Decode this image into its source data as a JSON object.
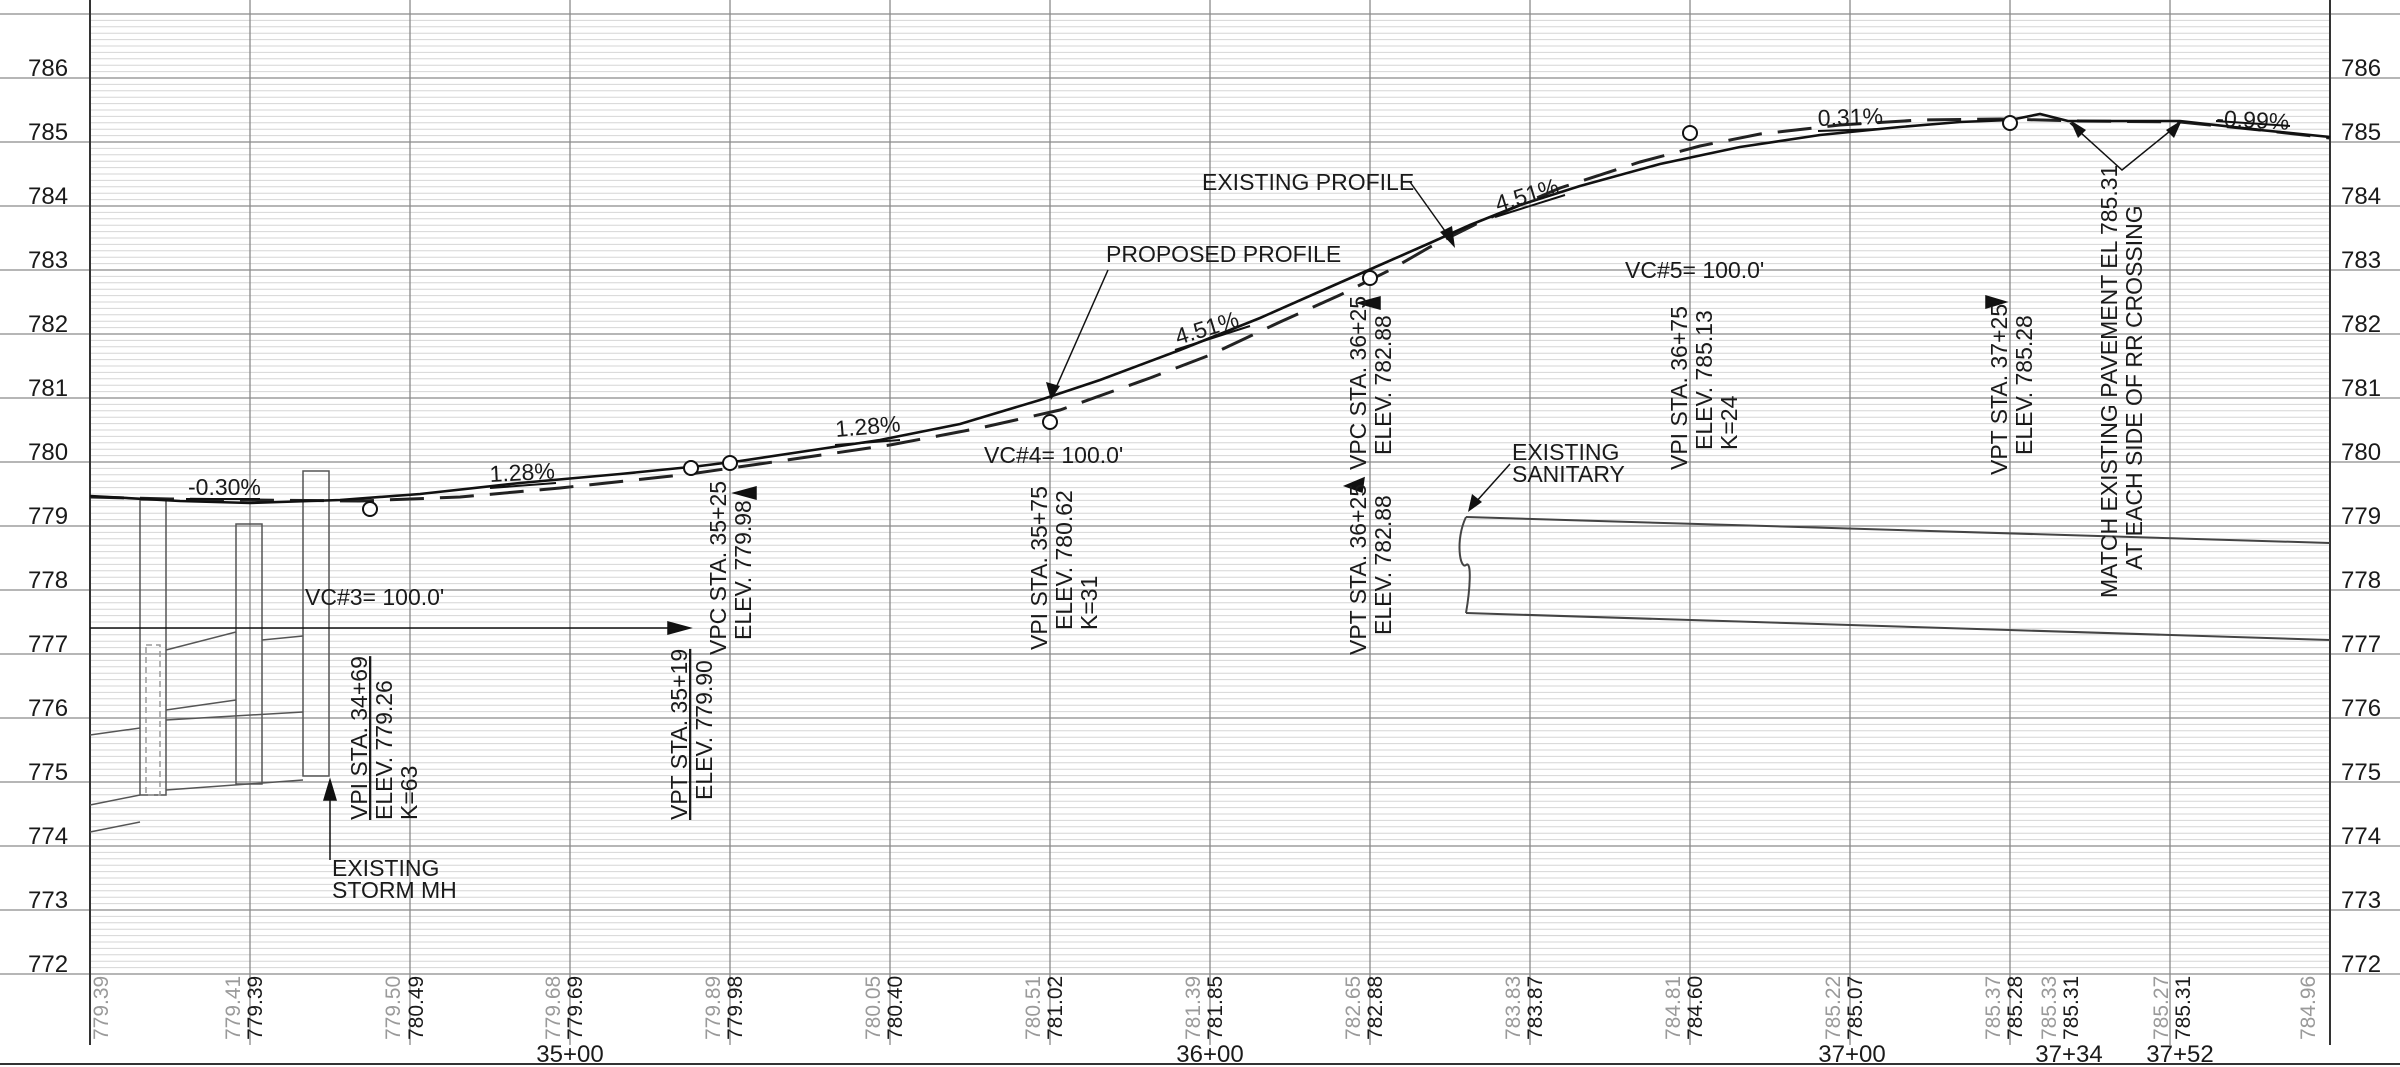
{
  "elevation_labels": [
    "786",
    "785",
    "784",
    "783",
    "782",
    "781",
    "780",
    "779",
    "778",
    "777",
    "776",
    "775",
    "774",
    "773",
    "772"
  ],
  "station_labels": [
    "35+00",
    "36+00",
    "37+00",
    "37+34",
    "37+52"
  ],
  "bottom_elevations": [
    {
      "existing": "779.39",
      "proposed": ""
    },
    {
      "existing": "779.41",
      "proposed": "779.39"
    },
    {
      "existing": "779.50",
      "proposed": "780.49"
    },
    {
      "existing": "779.68",
      "proposed": "779.69"
    },
    {
      "existing": "779.89",
      "proposed": "779.98"
    },
    {
      "existing": "780.05",
      "proposed": "780.40"
    },
    {
      "existing": "780.51",
      "proposed": "781.02"
    },
    {
      "existing": "781.39",
      "proposed": "781.85"
    },
    {
      "existing": "782.65",
      "proposed": "782.88"
    },
    {
      "existing": "783.83",
      "proposed": "783.87"
    },
    {
      "existing": "784.81",
      "proposed": "784.60"
    },
    {
      "existing": "785.22",
      "proposed": "785.07"
    },
    {
      "existing": "785.37",
      "proposed": "785.28"
    },
    {
      "existing": "785.33",
      "proposed": "785.31"
    },
    {
      "existing": "785.27",
      "proposed": "785.31"
    },
    {
      "existing": "784.96",
      "proposed": ""
    }
  ],
  "grades": {
    "g1": "-0.30%",
    "g2": "1.28%",
    "g3": "1.28%",
    "g4": "4.51%",
    "g5": "4.51%",
    "g6": "0.31%",
    "g7": "-0.99%"
  },
  "curves": {
    "vc3": "VC#3= 100.0'",
    "vc4": "VC#4= 100.0'",
    "vc5": "VC#5= 100.0'"
  },
  "points": {
    "vpi3": {
      "sta": "VPI STA. 34+69",
      "elev": "ELEV. 779.26",
      "k": "K=63"
    },
    "vpt3": {
      "sta": "VPT STA. 35+19",
      "elev": "ELEV. 779.90"
    },
    "vpc4": {
      "sta": "VPC STA. 35+25",
      "elev": "ELEV. 779.98"
    },
    "vpi4": {
      "sta": "VPI STA. 35+75",
      "elev": "ELEV. 780.62",
      "k": "K=31"
    },
    "vpt4": {
      "sta": "VPT STA. 36+25",
      "elev": "ELEV. 782.88"
    },
    "vpc5": {
      "sta": "VPC STA. 36+25",
      "elev": "ELEV. 782.88"
    },
    "vpi5": {
      "sta": "VPI STA. 36+75",
      "elev": "ELEV. 785.13",
      "k": "K=24"
    },
    "vpt5": {
      "sta": "VPT STA. 37+25",
      "elev": "ELEV. 785.28"
    }
  },
  "callouts": {
    "existing_profile": "EXISTING PROFILE",
    "proposed_profile": "PROPOSED PROFILE",
    "sanitary_1": "EXISTING",
    "sanitary_2": "SANITARY",
    "storm_1": "EXISTING",
    "storm_2": "STORM MH",
    "match_1": "MATCH EXISTING PAVEMENT EL 785.31",
    "match_2": "AT EACH SIDE OF RR CROSSING"
  }
}
